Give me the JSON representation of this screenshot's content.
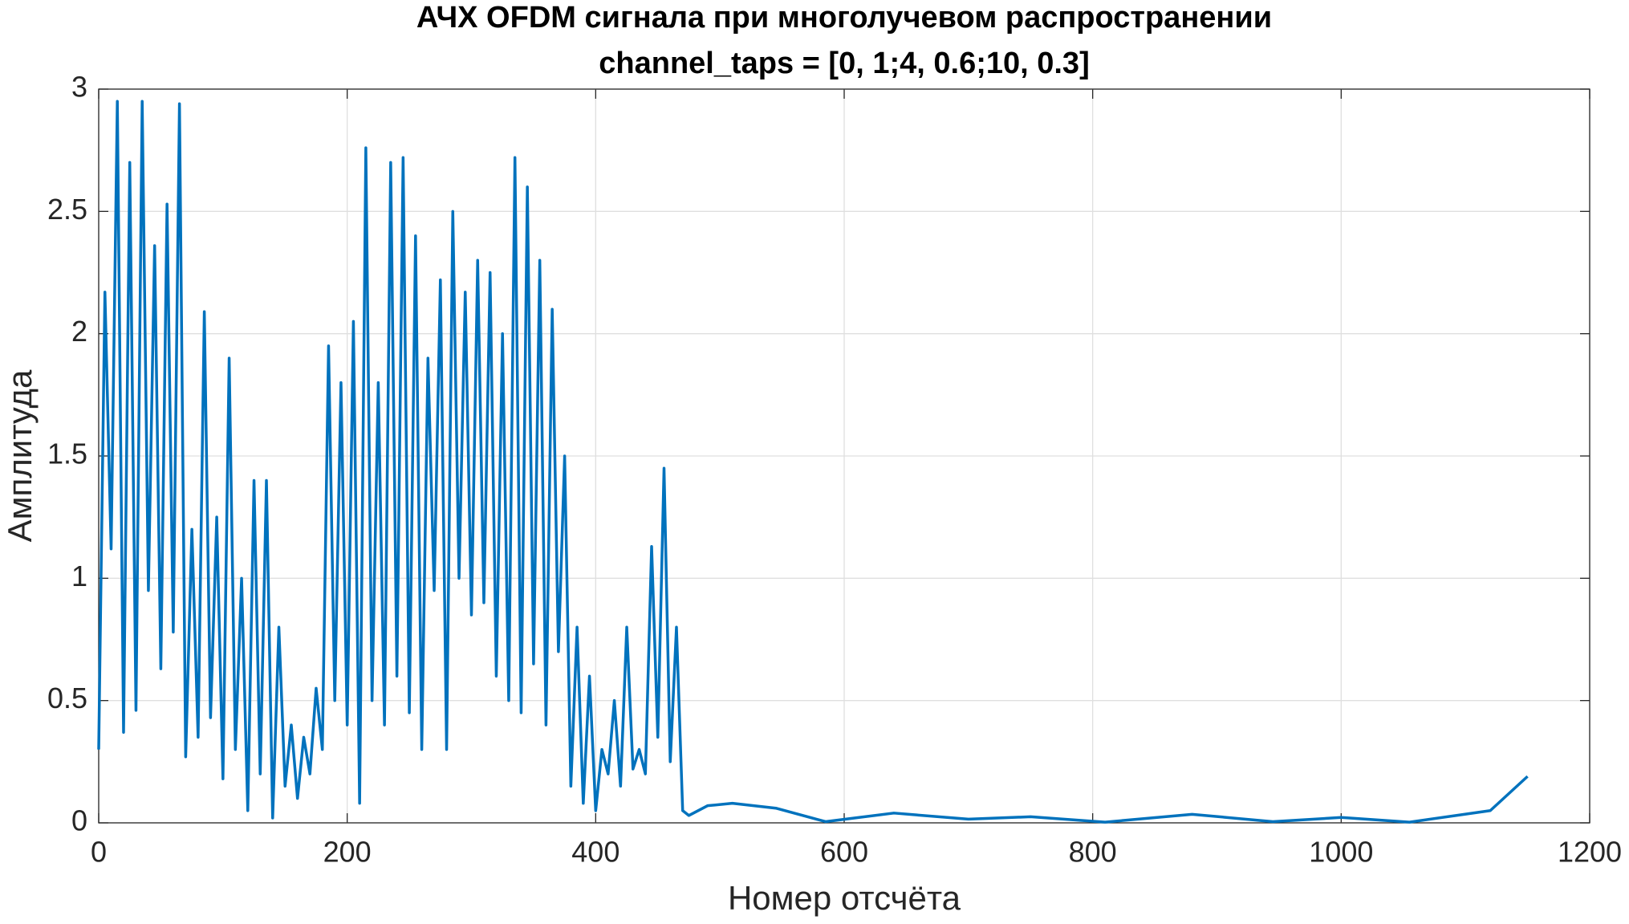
{
  "chart_data": {
    "type": "line",
    "title": [
      "АЧХ OFDM сигнала при многолучевом распространении",
      "channel_taps = [0, 1;4, 0.6;10, 0.3]"
    ],
    "xlabel": "Номер отсчёта",
    "ylabel": "Амплитуда",
    "xlim": [
      0,
      1200
    ],
    "ylim": [
      0,
      3
    ],
    "xticks": [
      0,
      200,
      400,
      600,
      800,
      1000,
      1200
    ],
    "yticks": [
      0,
      0.5,
      1,
      1.5,
      2,
      2.5,
      3
    ],
    "grid": true,
    "x": [
      0,
      5,
      10,
      15,
      20,
      25,
      30,
      35,
      40,
      45,
      50,
      55,
      60,
      65,
      70,
      75,
      80,
      85,
      90,
      95,
      100,
      105,
      110,
      115,
      120,
      125,
      130,
      135,
      140,
      145,
      150,
      155,
      160,
      165,
      170,
      175,
      180,
      185,
      190,
      195,
      200,
      205,
      210,
      215,
      220,
      225,
      230,
      235,
      240,
      245,
      250,
      255,
      260,
      265,
      270,
      275,
      280,
      285,
      290,
      295,
      300,
      305,
      310,
      315,
      320,
      325,
      330,
      335,
      340,
      345,
      350,
      355,
      360,
      365,
      370,
      375,
      380,
      385,
      390,
      395,
      400,
      405,
      410,
      415,
      420,
      425,
      430,
      435,
      440,
      445,
      450,
      455,
      460,
      465,
      470,
      475,
      490,
      510,
      545,
      585,
      640,
      700,
      750,
      810,
      880,
      945,
      1000,
      1055,
      1120,
      1150
    ],
    "series": [
      {
        "color": "#0072bd",
        "values": [
          0.3,
          2.17,
          1.12,
          2.95,
          0.37,
          2.7,
          0.46,
          2.95,
          0.95,
          2.36,
          0.63,
          2.53,
          0.78,
          2.94,
          0.27,
          1.2,
          0.35,
          2.09,
          0.43,
          1.25,
          0.18,
          1.9,
          0.3,
          1.0,
          0.05,
          1.4,
          0.2,
          1.4,
          0.02,
          0.8,
          0.15,
          0.4,
          0.1,
          0.35,
          0.2,
          0.55,
          0.3,
          1.95,
          0.5,
          1.8,
          0.4,
          2.05,
          0.08,
          2.76,
          0.5,
          1.8,
          0.4,
          2.7,
          0.6,
          2.72,
          0.45,
          2.4,
          0.3,
          1.9,
          0.95,
          2.22,
          0.3,
          2.5,
          1.0,
          2.17,
          0.85,
          2.3,
          0.9,
          2.25,
          0.6,
          2.0,
          0.5,
          2.72,
          0.45,
          2.6,
          0.65,
          2.3,
          0.4,
          2.1,
          0.7,
          1.5,
          0.15,
          0.8,
          0.08,
          0.6,
          0.05,
          0.3,
          0.2,
          0.5,
          0.15,
          0.8,
          0.22,
          0.3,
          0.2,
          1.13,
          0.35,
          1.45,
          0.25,
          0.8,
          0.05,
          0.03,
          0.07,
          0.08,
          0.06,
          0.005,
          0.04,
          0.015,
          0.025,
          0.003,
          0.035,
          0.005,
          0.022,
          0.003,
          0.05,
          0.19
        ]
      }
    ]
  }
}
